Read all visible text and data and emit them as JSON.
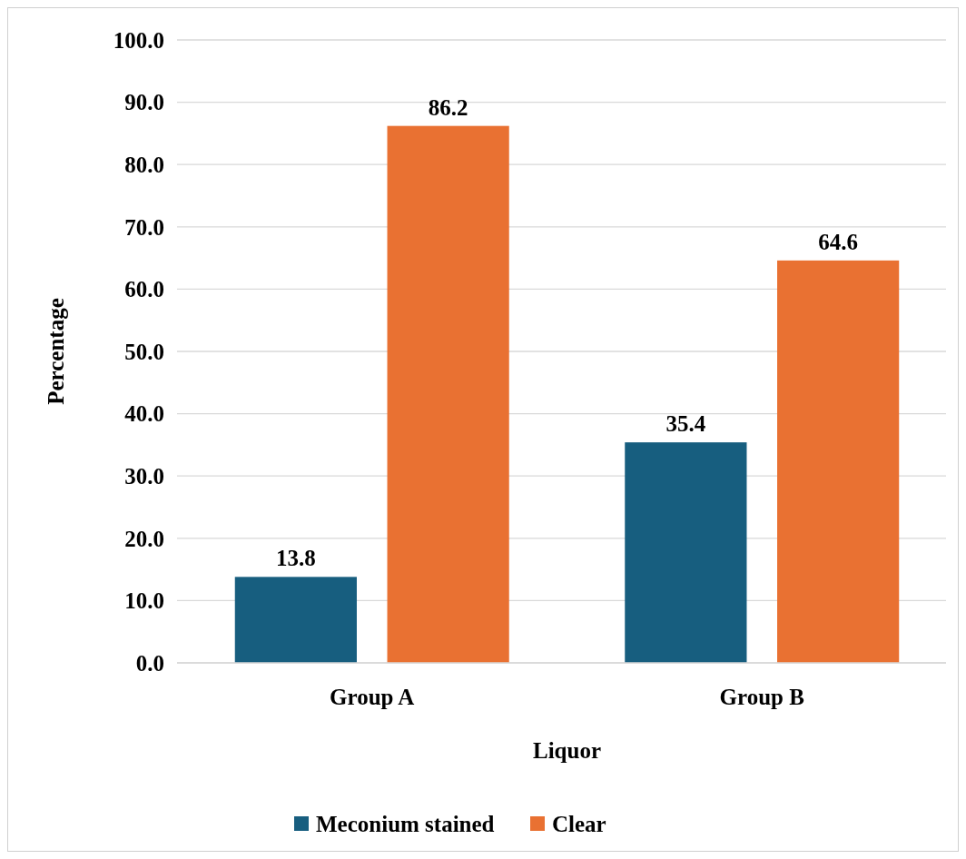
{
  "chart_data": {
    "type": "bar",
    "xlabel": "Liquor",
    "ylabel": "Percentage",
    "categories": [
      "Group A",
      "Group B"
    ],
    "series": [
      {
        "name": "Meconium stained",
        "color": "#175e7f",
        "values": [
          13.8,
          35.4
        ]
      },
      {
        "name": "Clear",
        "color": "#e97132",
        "values": [
          86.2,
          64.6
        ]
      }
    ],
    "ylim": [
      0,
      100
    ],
    "yticks": [
      {
        "value": 0,
        "label": "0.0"
      },
      {
        "value": 10,
        "label": "10.0"
      },
      {
        "value": 20,
        "label": "20.0"
      },
      {
        "value": 30,
        "label": "30.0"
      },
      {
        "value": 40,
        "label": "40.0"
      },
      {
        "value": 50,
        "label": "50.0"
      },
      {
        "value": 60,
        "label": "60.0"
      },
      {
        "value": 70,
        "label": "70.0"
      },
      {
        "value": 80,
        "label": "80.0"
      },
      {
        "value": 90,
        "label": "90.0"
      },
      {
        "value": 100,
        "label": "100.0"
      }
    ],
    "grid": "y",
    "data_labels": true,
    "legend": "bottom"
  }
}
